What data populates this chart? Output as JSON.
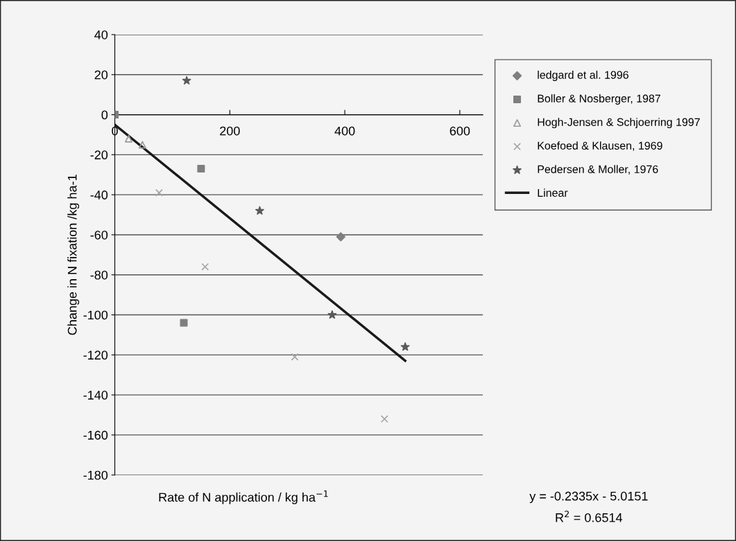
{
  "chart_data": {
    "type": "scatter",
    "xlabel": "Rate of N application / kg ha$^{−1}$",
    "ylabel": "Change in N fixation /kg ha-1",
    "xlim": [
      0,
      640
    ],
    "xticks": [
      0,
      200,
      400,
      600
    ],
    "ylim": [
      -180,
      40
    ],
    "yticks": [
      -180,
      -160,
      -140,
      -120,
      -100,
      -80,
      -60,
      -40,
      -20,
      0,
      20,
      40
    ],
    "grid": "y",
    "legend": "right",
    "annotations": [
      "y = -0.2335x - 5.0151",
      "R$^{2}$ = 0.6514"
    ],
    "series": [
      {
        "name": "ledgard et al. 1996",
        "color": "#7f7f7f",
        "marker": "diamond",
        "x": [
          393
        ],
        "values": [
          -61
        ]
      },
      {
        "name": "Boller & Nosberger, 1987",
        "color": "#7f7f7f",
        "marker": "square",
        "x": [
          0,
          150,
          120
        ],
        "values": [
          0,
          -27,
          -104
        ]
      },
      {
        "name": "Hogh-Jensen & Schjoerring 1997",
        "color": "#9a9a9a",
        "marker": "triangle",
        "x": [
          24,
          48
        ],
        "values": [
          -12,
          -15
        ]
      },
      {
        "name": "Koefoed & Klausen, 1969",
        "color": "#a5a5a5",
        "marker": "cross",
        "x": [
          77,
          157,
          313,
          469
        ],
        "values": [
          -39,
          -76,
          -121,
          -152
        ]
      },
      {
        "name": "Pedersen & Moller, 1976",
        "color": "#5a5a5a",
        "marker": "star",
        "x": [
          125,
          252,
          378,
          505
        ],
        "values": [
          17,
          -48,
          -100,
          -116
        ]
      },
      {
        "name": "Linear",
        "type": "line",
        "color": "#1a1a1a",
        "line_style": "solid",
        "marker": "none",
        "x": [
          0,
          505
        ],
        "values": [
          -5.0,
          -122.9
        ]
      }
    ]
  }
}
